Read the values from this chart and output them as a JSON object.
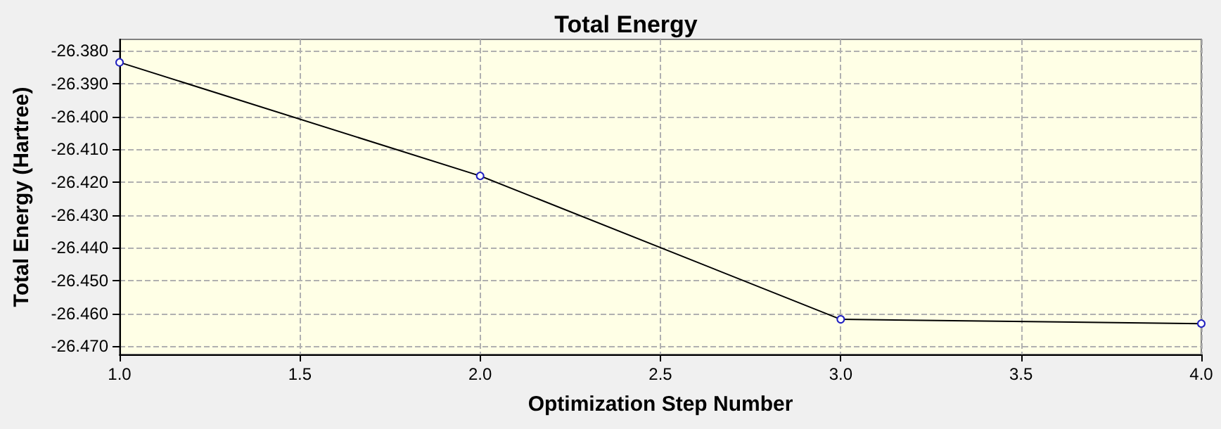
{
  "chart_data": {
    "type": "line",
    "title": "Total Energy",
    "xlabel": "Optimization Step Number",
    "ylabel": "Total Energy (Hartree)",
    "x": [
      1,
      2,
      3,
      4
    ],
    "series": [
      {
        "color": "#000000",
        "values": [
          -26.3835,
          -26.4181,
          -26.4618,
          -26.4631
        ]
      }
    ],
    "xlim": [
      1,
      4
    ],
    "xticks": [
      {
        "value": 1,
        "label": "1.0"
      },
      {
        "value": 1.5,
        "label": "1.5"
      },
      {
        "value": 2,
        "label": "2.0"
      },
      {
        "value": 2.5,
        "label": "2.5"
      },
      {
        "value": 3,
        "label": "3.0"
      },
      {
        "value": 3.5,
        "label": "3.5"
      },
      {
        "value": 4,
        "label": "4.0"
      }
    ],
    "ylim": [
      -26.4725,
      -26.3765
    ],
    "yticks": [
      {
        "value": -26.47,
        "label": "-26.470"
      },
      {
        "value": -26.46,
        "label": "-26.460"
      },
      {
        "value": -26.45,
        "label": "-26.450"
      },
      {
        "value": -26.44,
        "label": "-26.440"
      },
      {
        "value": -26.43,
        "label": "-26.430"
      },
      {
        "value": -26.42,
        "label": "-26.420"
      },
      {
        "value": -26.41,
        "label": "-26.410"
      },
      {
        "value": -26.4,
        "label": "-26.400"
      },
      {
        "value": -26.39,
        "label": "-26.390"
      },
      {
        "value": -26.38,
        "label": "-26.380"
      }
    ],
    "grid": true,
    "marker": "circle",
    "line_style": "solid"
  }
}
